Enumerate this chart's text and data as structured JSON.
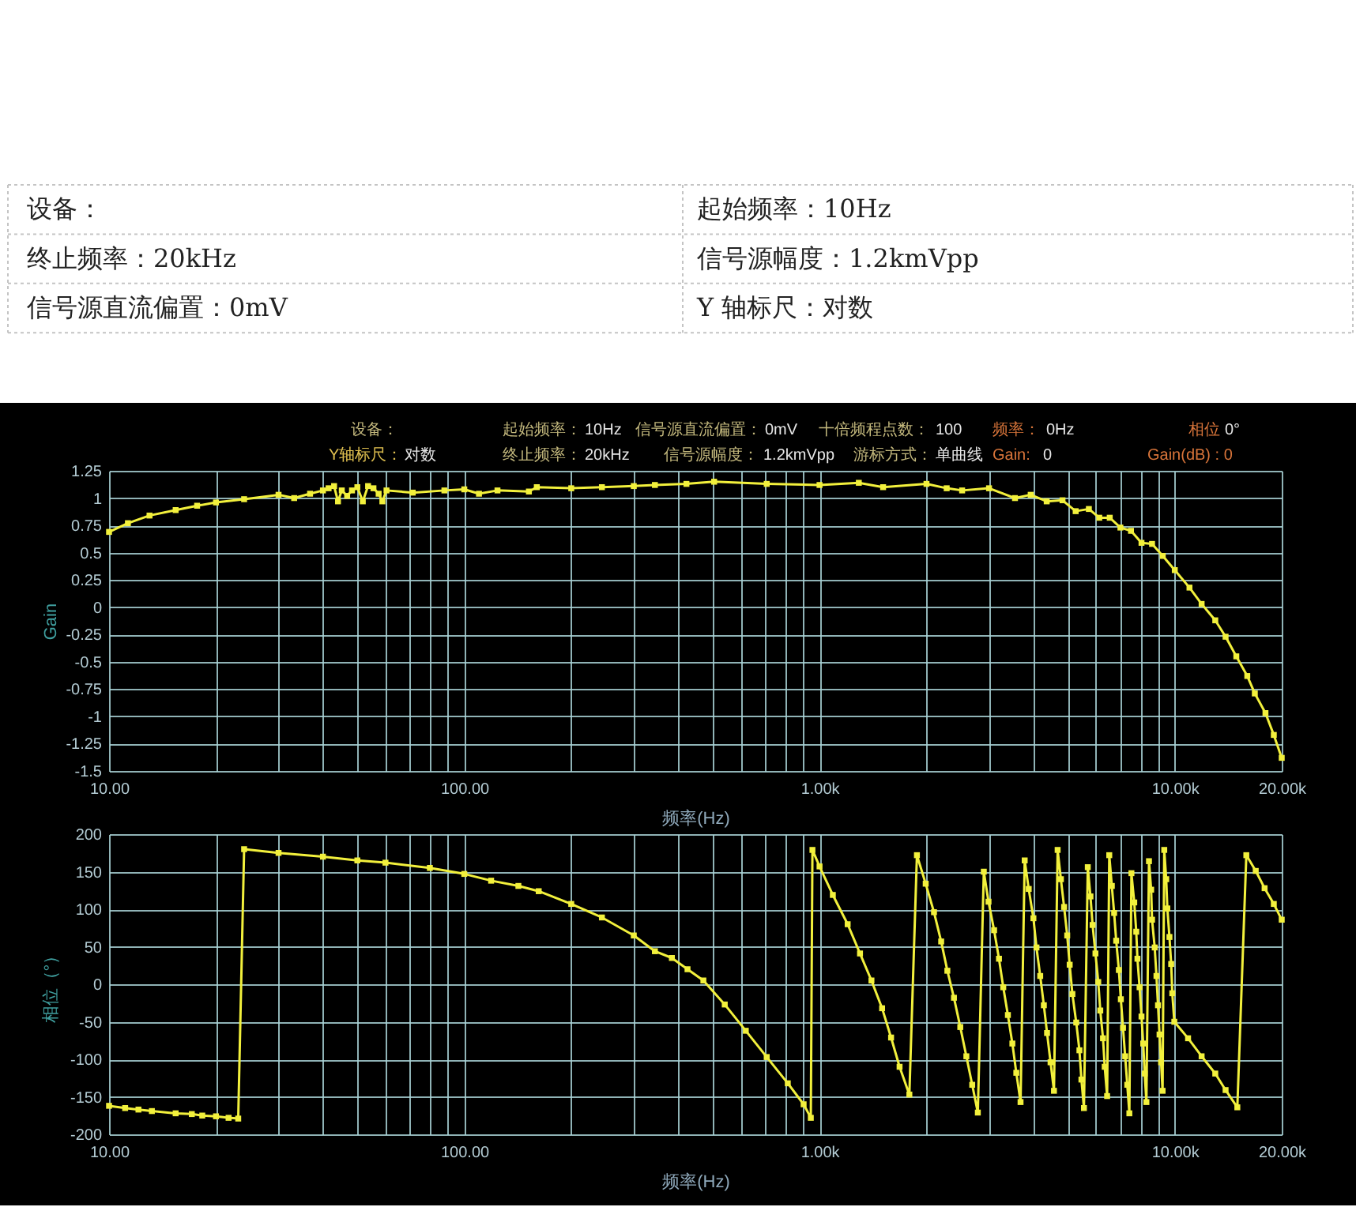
{
  "chart_data": [
    {
      "type": "other",
      "annotations": [
        "设备：",
        "起始频率：10Hz",
        "终止频率：20kHz",
        "信号源幅度：1.2kmVpp",
        "信号源直流偏置：0mV",
        "Y 轴标尺：对数"
      ]
    },
    {
      "type": "other",
      "annotations": [
        "设备：",
        "起始频率：",
        "10Hz",
        "信号源直流偏置：",
        "0mV",
        "十倍频程点数：",
        "100",
        "频率：",
        "0Hz",
        "相位",
        "0°",
        "Y轴标尺：",
        "对数",
        "终止频率：",
        "20kHz",
        "信号源幅度：",
        "1.2kmVpp",
        "游标方式：",
        "单曲线",
        "Gain:",
        "0",
        "Gain(dB) : 0"
      ]
    },
    {
      "type": "line",
      "xlabel": "频率(Hz)",
      "ylabel": "Gain",
      "log": "x",
      "grid": true,
      "marker": "square",
      "line_style": "solid",
      "color": "#f2f03c",
      "x": [
        10,
        11.3,
        13,
        15.4,
        17.7,
        20,
        24,
        30,
        33.2,
        36.8,
        40,
        41.5,
        43,
        44.1,
        45.2,
        46.8,
        48.3,
        50,
        51.8,
        53.6,
        55.5,
        57.4,
        58.8,
        60.4,
        71.6,
        87.9,
        100,
        110,
        124,
        152,
        160,
        200,
        244,
        300,
        344,
        422,
        505,
        710,
        1000,
        1290,
        1510,
        2000,
        2280,
        2520,
        3000,
        3550,
        3930,
        4360,
        4830,
        5260,
        5730,
        6130,
        6560,
        7030,
        7530,
        8060,
        8630,
        9250,
        10000,
        11000,
        11900,
        13000,
        13900,
        14900,
        16000,
        16800,
        18000,
        19000,
        20000
      ],
      "values": [
        0.69,
        0.77,
        0.84,
        0.89,
        0.93,
        0.96,
        0.99,
        1.03,
        1.0,
        1.04,
        1.07,
        1.09,
        1.11,
        0.97,
        1.07,
        1.02,
        1.07,
        1.1,
        0.97,
        1.11,
        1.09,
        1.04,
        0.97,
        1.07,
        1.05,
        1.07,
        1.08,
        1.04,
        1.07,
        1.06,
        1.1,
        1.09,
        1.1,
        1.11,
        1.12,
        1.13,
        1.15,
        1.13,
        1.12,
        1.14,
        1.1,
        1.13,
        1.09,
        1.07,
        1.09,
        1.0,
        1.03,
        0.97,
        0.98,
        0.88,
        0.9,
        0.82,
        0.82,
        0.73,
        0.7,
        0.59,
        0.58,
        0.47,
        0.34,
        0.18,
        0.03,
        -0.12,
        -0.27,
        -0.45,
        -0.63,
        -0.79,
        -0.97,
        -1.17,
        -1.38
      ],
      "xlim": [
        10,
        20000
      ],
      "xticks": [
        {
          "value": 10,
          "label": "10.00"
        },
        {
          "value": 20,
          "label": null
        },
        {
          "value": 30,
          "label": null
        },
        {
          "value": 40,
          "label": null
        },
        {
          "value": 50,
          "label": null
        },
        {
          "value": 60,
          "label": null
        },
        {
          "value": 70,
          "label": null
        },
        {
          "value": 80,
          "label": null
        },
        {
          "value": 90,
          "label": null
        },
        {
          "value": 100,
          "label": "100.00"
        },
        {
          "value": 200,
          "label": null
        },
        {
          "value": 300,
          "label": null
        },
        {
          "value": 400,
          "label": null
        },
        {
          "value": 500,
          "label": null
        },
        {
          "value": 600,
          "label": null
        },
        {
          "value": 700,
          "label": null
        },
        {
          "value": 800,
          "label": null
        },
        {
          "value": 900,
          "label": null
        },
        {
          "value": 1000,
          "label": "1.00k"
        },
        {
          "value": 2000,
          "label": null
        },
        {
          "value": 3000,
          "label": null
        },
        {
          "value": 4000,
          "label": null
        },
        {
          "value": 5000,
          "label": null
        },
        {
          "value": 6000,
          "label": null
        },
        {
          "value": 7000,
          "label": null
        },
        {
          "value": 8000,
          "label": null
        },
        {
          "value": 9000,
          "label": null
        },
        {
          "value": 10000,
          "label": "10.00k"
        },
        {
          "value": 20000,
          "label": "20.00k"
        }
      ],
      "ylim": [
        -1.5,
        1.25
      ],
      "yticks": [
        -1.5,
        -1.25,
        -1,
        -0.75,
        -0.5,
        -0.25,
        0,
        0.25,
        0.5,
        0.75,
        1,
        1.25
      ]
    },
    {
      "type": "line",
      "xlabel": "频率(Hz)",
      "ylabel": "相位（°）",
      "log": "x",
      "grid": true,
      "marker": "square",
      "line_style": "solid",
      "color": "#f2f03c",
      "x": [
        10,
        11.1,
        12.1,
        13.2,
        15.4,
        17.1,
        18.3,
        20,
        21.7,
        23.1,
        24,
        30,
        40,
        50,
        60,
        80,
        100,
        119,
        142,
        162,
        200,
        244,
        300,
        344,
        384,
        425,
        471,
        541,
        620,
        710,
        814,
        902,
        945,
        955,
        1000,
        1090,
        1200,
        1300,
        1400,
        1500,
        1590,
        1680,
        1790,
        1880,
        1990,
        2100,
        2200,
        2290,
        2390,
        2490,
        2590,
        2690,
        2790,
        2900,
        2990,
        3100,
        3200,
        3290,
        3390,
        3490,
        3580,
        3680,
        3780,
        3880,
        4000,
        4080,
        4180,
        4280,
        4370,
        4470,
        4570,
        4680,
        4780,
        4880,
        4980,
        5060,
        5150,
        5280,
        5390,
        5460,
        5550,
        5690,
        5790,
        5870,
        5980,
        6090,
        6170,
        6280,
        6350,
        6450,
        6540,
        6650,
        6750,
        6840,
        6960,
        7050,
        7150,
        7250,
        7350,
        7450,
        7550,
        7690,
        7790,
        7850,
        7960,
        8060,
        8150,
        8230,
        8320,
        8460,
        8580,
        8630,
        8780,
        8880,
        8970,
        9060,
        9150,
        9240,
        9340,
        9460,
        9530,
        9660,
        9770,
        9840,
        9970,
        10900,
        11900,
        13000,
        13900,
        15000,
        15900,
        16900,
        17900,
        19000,
        20000
      ],
      "values": [
        -162,
        -165,
        -167,
        -169,
        -172,
        -173,
        -175,
        -176,
        -178,
        -179,
        180,
        175,
        170,
        165,
        162,
        155,
        147,
        138,
        131,
        124,
        107,
        89,
        65,
        44,
        35,
        20,
        5,
        -27,
        -62,
        -97,
        -132,
        -160,
        -178,
        179,
        157,
        119,
        80,
        41,
        5,
        -32,
        -71,
        -110,
        -147,
        172,
        134,
        96,
        57,
        18,
        -18,
        -57,
        -96,
        -134,
        -171,
        150,
        110,
        72,
        34,
        -4,
        -41,
        -79,
        -118,
        -157,
        165,
        127,
        88,
        49,
        11,
        -28,
        -65,
        -104,
        -142,
        179,
        140,
        103,
        65,
        26,
        -13,
        -51,
        -88,
        -127,
        -165,
        156,
        117,
        79,
        41,
        3,
        -35,
        -72,
        -110,
        -149,
        172,
        131,
        95,
        58,
        19,
        -20,
        -58,
        -96,
        -134,
        -172,
        148,
        109,
        70,
        34,
        -4,
        -43,
        -79,
        -119,
        -157,
        164,
        126,
        86,
        49,
        11,
        -28,
        -67,
        -104,
        -142,
        179,
        140,
        101,
        63,
        27,
        -12,
        -50,
        -72,
        -96,
        -119,
        -141,
        -164,
        172,
        151,
        128,
        107,
        86
      ],
      "xlim": [
        10,
        20000
      ],
      "xticks": [
        {
          "value": 10,
          "label": "10.00"
        },
        {
          "value": 20,
          "label": null
        },
        {
          "value": 30,
          "label": null
        },
        {
          "value": 40,
          "label": null
        },
        {
          "value": 50,
          "label": null
        },
        {
          "value": 60,
          "label": null
        },
        {
          "value": 70,
          "label": null
        },
        {
          "value": 80,
          "label": null
        },
        {
          "value": 90,
          "label": null
        },
        {
          "value": 100,
          "label": "100.00"
        },
        {
          "value": 200,
          "label": null
        },
        {
          "value": 300,
          "label": null
        },
        {
          "value": 400,
          "label": null
        },
        {
          "value": 500,
          "label": null
        },
        {
          "value": 600,
          "label": null
        },
        {
          "value": 700,
          "label": null
        },
        {
          "value": 800,
          "label": null
        },
        {
          "value": 900,
          "label": null
        },
        {
          "value": 1000,
          "label": "1.00k"
        },
        {
          "value": 2000,
          "label": null
        },
        {
          "value": 3000,
          "label": null
        },
        {
          "value": 4000,
          "label": null
        },
        {
          "value": 5000,
          "label": null
        },
        {
          "value": 6000,
          "label": null
        },
        {
          "value": 7000,
          "label": null
        },
        {
          "value": 8000,
          "label": null
        },
        {
          "value": 9000,
          "label": null
        },
        {
          "value": 10000,
          "label": "10.00k"
        },
        {
          "value": 20000,
          "label": "20.00k"
        }
      ],
      "ylim": [
        -200,
        200
      ],
      "yticks": [
        -200,
        -150,
        -100,
        -50,
        0,
        50,
        100,
        150,
        200
      ]
    }
  ]
}
